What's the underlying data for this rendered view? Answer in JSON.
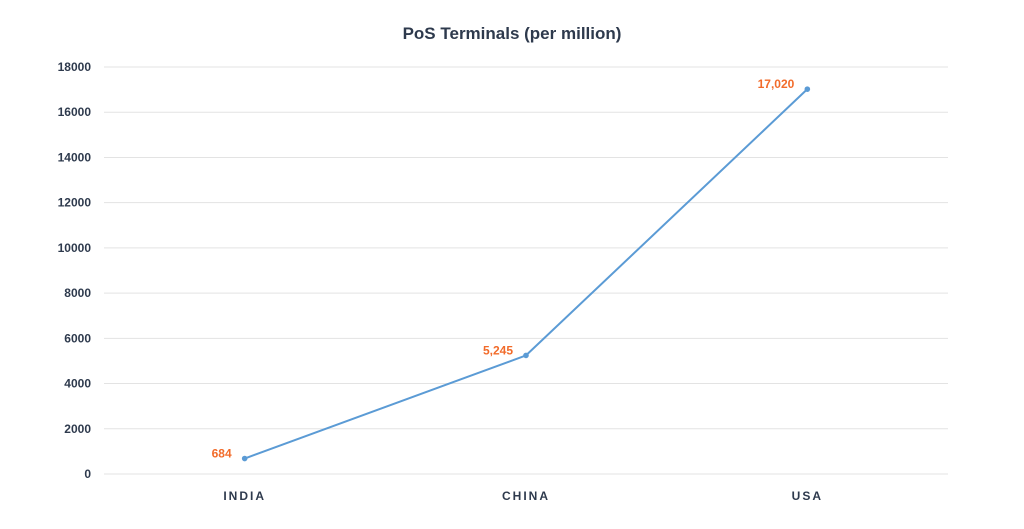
{
  "chart_data": {
    "type": "line",
    "title": "PoS Terminals (per million)",
    "categories": [
      "INDIA",
      "CHINA",
      "USA"
    ],
    "values": [
      684,
      5245,
      17020
    ],
    "data_labels": [
      "684",
      "5,245",
      "17,020"
    ],
    "yticks": [
      "0",
      "2000",
      "4000",
      "6000",
      "8000",
      "10000",
      "12000",
      "14000",
      "16000",
      "18000"
    ],
    "ylim": [
      0,
      18000
    ],
    "grid": true,
    "line_color": "#5b9bd5",
    "label_color": "#f26b2a"
  }
}
